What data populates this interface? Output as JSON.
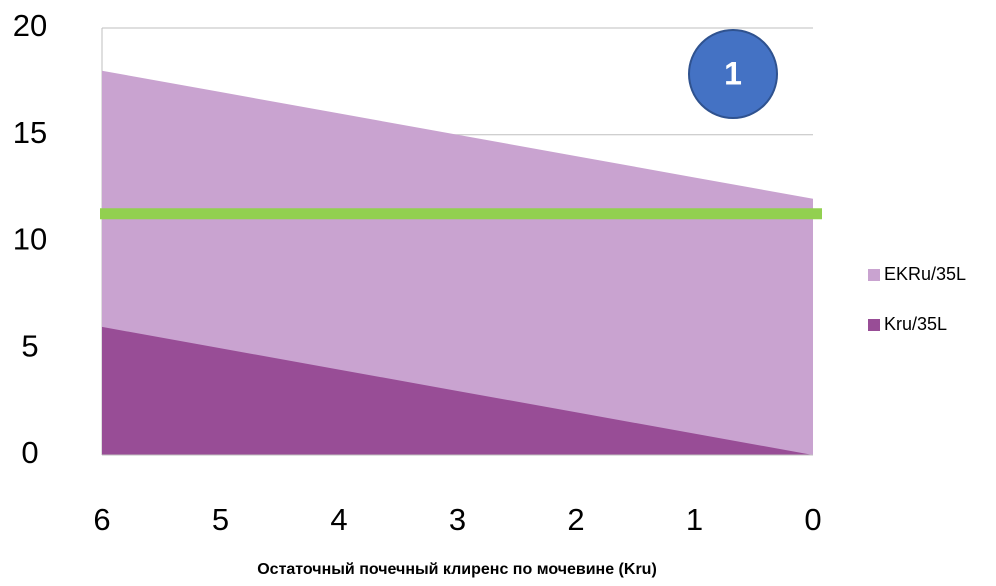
{
  "chart_data": {
    "type": "area",
    "x_title": "Остаточный почечный клиренс по мочевине (Kru)",
    "x": [
      6,
      5,
      4,
      3,
      2,
      1,
      0
    ],
    "series": [
      {
        "name": "EKRu/35L",
        "color": "#c9a3d0",
        "values": [
          18,
          17,
          16,
          15,
          14,
          13,
          12
        ]
      },
      {
        "name": "Kru/35L",
        "color": "#984d96",
        "values": [
          6,
          5,
          4,
          3,
          2,
          1,
          0
        ]
      }
    ],
    "xlim": [
      6,
      0
    ],
    "xticks": [
      6,
      5,
      4,
      3,
      2,
      1,
      0
    ],
    "ylim": [
      0,
      20
    ],
    "yticks": [
      0,
      5,
      10,
      15,
      20
    ],
    "grid": true,
    "legend": "right",
    "reference_line": {
      "value": 11.3,
      "color": "#92d050"
    },
    "annotation": "1"
  }
}
